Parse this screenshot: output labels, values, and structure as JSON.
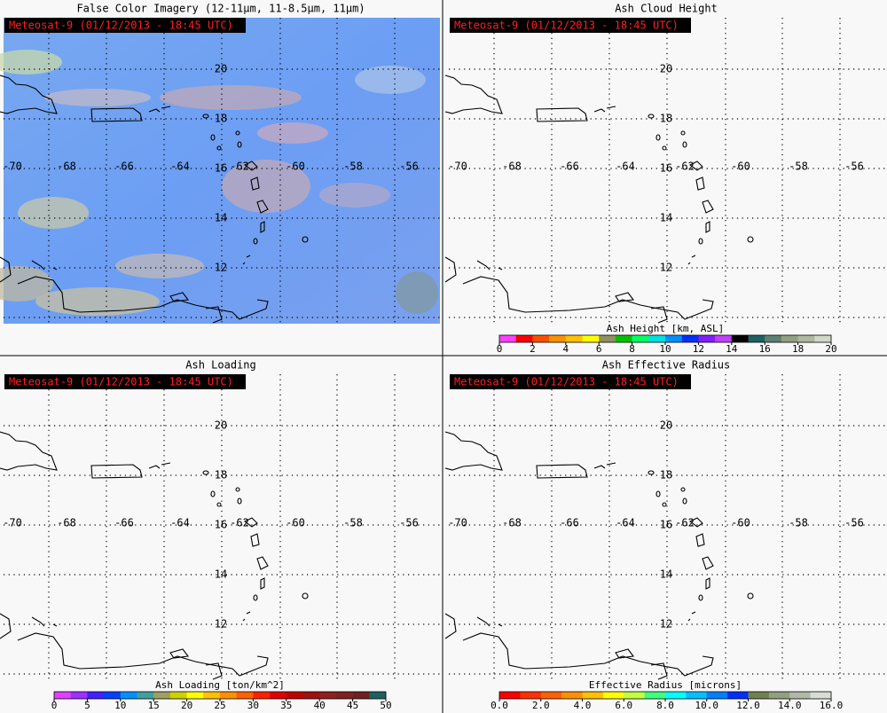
{
  "panels": [
    {
      "title": "False Color Imagery (12-11µm, 11-8.5µm, 11µm)",
      "stamp": "Meteosat-9  (01/12/2013 - 18:45 UTC)",
      "lat_labels": [
        "20",
        "18",
        "16",
        "14",
        "12"
      ],
      "lon_labels": [
        "-70",
        "-68",
        "-66",
        "-64",
        "-62",
        "-60",
        "-58",
        "-56"
      ],
      "imagery": true
    },
    {
      "title": "Ash Cloud Height",
      "stamp": "Meteosat-9  (01/12/2013 - 18:45 UTC)",
      "lat_labels": [
        "20",
        "18",
        "16",
        "14",
        "12"
      ],
      "lon_labels": [
        "-70",
        "-68",
        "-66",
        "-64",
        "-62",
        "-60",
        "-58",
        "-56"
      ],
      "colorbar": {
        "label": "Ash Height [km, ASL]",
        "ticks": [
          "0",
          "2",
          "4",
          "6",
          "8",
          "10",
          "12",
          "14",
          "16",
          "18",
          "20"
        ],
        "colors": [
          "#ff40ff",
          "#ff0000",
          "#ff5000",
          "#ff9000",
          "#ffc000",
          "#ffff00",
          "#909060",
          "#00c000",
          "#00ff60",
          "#00e0e0",
          "#0090ff",
          "#0030ff",
          "#8020ff",
          "#c040ff",
          "#000000",
          "#206060",
          "#608070",
          "#90a080",
          "#b0b8a0",
          "#d0d8c8"
        ]
      }
    },
    {
      "title": "Ash Loading",
      "stamp": "Meteosat-9  (01/12/2013 - 18:45 UTC)",
      "lat_labels": [
        "20",
        "18",
        "16",
        "14",
        "12"
      ],
      "lon_labels": [
        "-70",
        "-68",
        "-66",
        "-64",
        "-62",
        "-60",
        "-58",
        "-56"
      ],
      "colorbar": {
        "label": "Ash Loading [ton/km^2]",
        "ticks": [
          "0",
          "5",
          "10",
          "15",
          "20",
          "25",
          "30",
          "35",
          "40",
          "45",
          "50"
        ],
        "colors": [
          "#e040ff",
          "#a030ff",
          "#4020ff",
          "#0040ff",
          "#0090ff",
          "#40a0a0",
          "#a0a060",
          "#d0d000",
          "#ffff00",
          "#ffc000",
          "#ff9000",
          "#ff6000",
          "#ff2000",
          "#e00000",
          "#c00000",
          "#a01010",
          "#902020",
          "#802020",
          "#702020",
          "#206060"
        ]
      }
    },
    {
      "title": "Ash Effective Radius",
      "stamp": "Meteosat-9  (01/12/2013 - 18:45 UTC)",
      "lat_labels": [
        "20",
        "18",
        "16",
        "14",
        "12"
      ],
      "lon_labels": [
        "-70",
        "-68",
        "-66",
        "-64",
        "-62",
        "-60",
        "-58",
        "-56"
      ],
      "colorbar": {
        "label": "Effective Radius [microns]",
        "ticks": [
          "0.0",
          "2.0",
          "4.0",
          "6.0",
          "8.0",
          "10.0",
          "12.0",
          "14.0",
          "16.0"
        ],
        "colors": [
          "#ff0000",
          "#ff3000",
          "#ff6000",
          "#ff9000",
          "#ffc000",
          "#ffff00",
          "#c0ff40",
          "#40ff80",
          "#00ffff",
          "#00c0ff",
          "#0080ff",
          "#0030ff",
          "#708050",
          "#90a080",
          "#b0b8a8",
          "#d8dcd4"
        ]
      }
    }
  ]
}
